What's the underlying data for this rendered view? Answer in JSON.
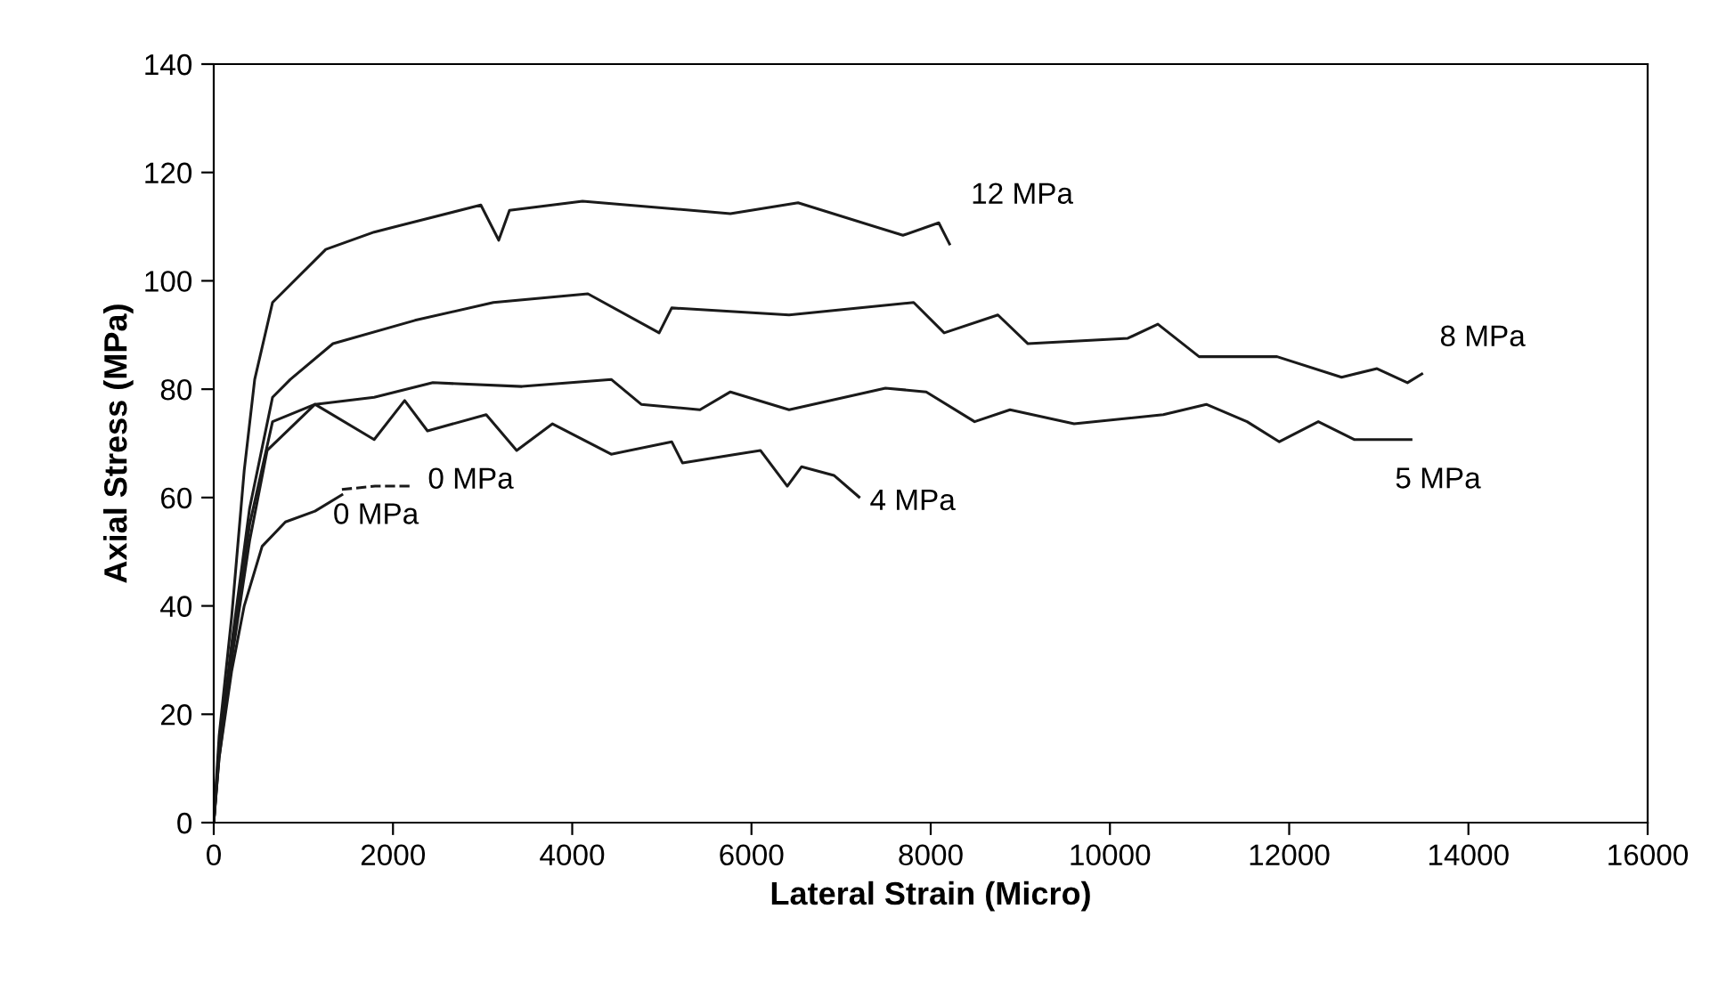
{
  "chart_data": {
    "type": "line",
    "xlabel": "Lateral Strain (Micro)",
    "ylabel": "Axial Stress (MPa)",
    "xlim": [
      0,
      16000
    ],
    "ylim": [
      0,
      140
    ],
    "xticks": [
      0,
      2000,
      4000,
      6000,
      8000,
      10000,
      12000,
      14000,
      16000
    ],
    "yticks": [
      0,
      20,
      40,
      60,
      80,
      100,
      120,
      140
    ],
    "grid": false,
    "legend": false,
    "marker": "none",
    "series": [
      {
        "name": "12 MPa",
        "color": "#1a1a1a",
        "line_style": "solid",
        "x": [
          0,
          60,
          200,
          340,
          457,
          656,
          1250,
          1790,
          2980,
          3180,
          3300,
          4115,
          5765,
          6520,
          7690,
          8090,
          8210
        ],
        "values": [
          0,
          16,
          38,
          65,
          81.8,
          96,
          105.8,
          109,
          114,
          107.5,
          113,
          114.7,
          112.4,
          114.4,
          108.4,
          110.7,
          106.8
        ]
      },
      {
        "name": "8 MPa",
        "color": "#1a1a1a",
        "line_style": "solid",
        "x": [
          0,
          60,
          200,
          400,
          656,
          855,
          1330,
          2245,
          3120,
          4175,
          4970,
          5110,
          6420,
          7810,
          8150,
          8750,
          9085,
          10200,
          10535,
          10995,
          11865,
          12585,
          12980,
          13320,
          13480
        ],
        "values": [
          0,
          14,
          33,
          58,
          78.5,
          81.8,
          88.4,
          92.7,
          96,
          97.6,
          90.4,
          95,
          93.7,
          96,
          90.4,
          93.7,
          88.4,
          89.4,
          92,
          86,
          86,
          82.2,
          83.8,
          81.2,
          82.8
        ]
      },
      {
        "name": "5 MPa",
        "color": "#1a1a1a",
        "line_style": "solid",
        "x": [
          0,
          60,
          200,
          400,
          656,
          1130,
          1790,
          2445,
          3440,
          4435,
          4770,
          5425,
          5765,
          6420,
          7495,
          7950,
          8490,
          8885,
          9600,
          10595,
          11075,
          11530,
          11890,
          12325,
          12725,
          13360
        ],
        "values": [
          0,
          13,
          31,
          55,
          74,
          77.2,
          78.5,
          81.2,
          80.5,
          81.8,
          77.2,
          76.2,
          79.5,
          76.2,
          80.2,
          79.5,
          74,
          76.2,
          73.6,
          75.3,
          77.2,
          74,
          70.3,
          74,
          70.7,
          70.7
        ]
      },
      {
        "name": "4 MPa",
        "color": "#1a1a1a",
        "line_style": "solid",
        "x": [
          0,
          60,
          200,
          400,
          596,
          1130,
          1790,
          2130,
          2385,
          3040,
          3380,
          3780,
          4435,
          5110,
          5230,
          6100,
          6400,
          6560,
          6920,
          7200
        ],
        "values": [
          0,
          12,
          30,
          52,
          68.7,
          77.2,
          70.7,
          77.9,
          72.3,
          75.3,
          68.7,
          73.6,
          68,
          70.3,
          66.4,
          68.7,
          62.1,
          65.7,
          64.1,
          60.1
        ]
      },
      {
        "name": "0 MPa",
        "color": "#1a1a1a",
        "line_style": "solid",
        "x": [
          0,
          60,
          200,
          340,
          540,
          800,
          1130,
          1430
        ],
        "values": [
          0,
          12,
          28,
          40,
          51,
          55.5,
          57.5,
          60.5
        ]
      },
      {
        "name": "0 MPa",
        "color": "#1a1a1a",
        "line_style": "dashed",
        "x": [
          1430,
          1800,
          2190
        ],
        "values": [
          61.5,
          62.1,
          62.1
        ]
      }
    ]
  }
}
